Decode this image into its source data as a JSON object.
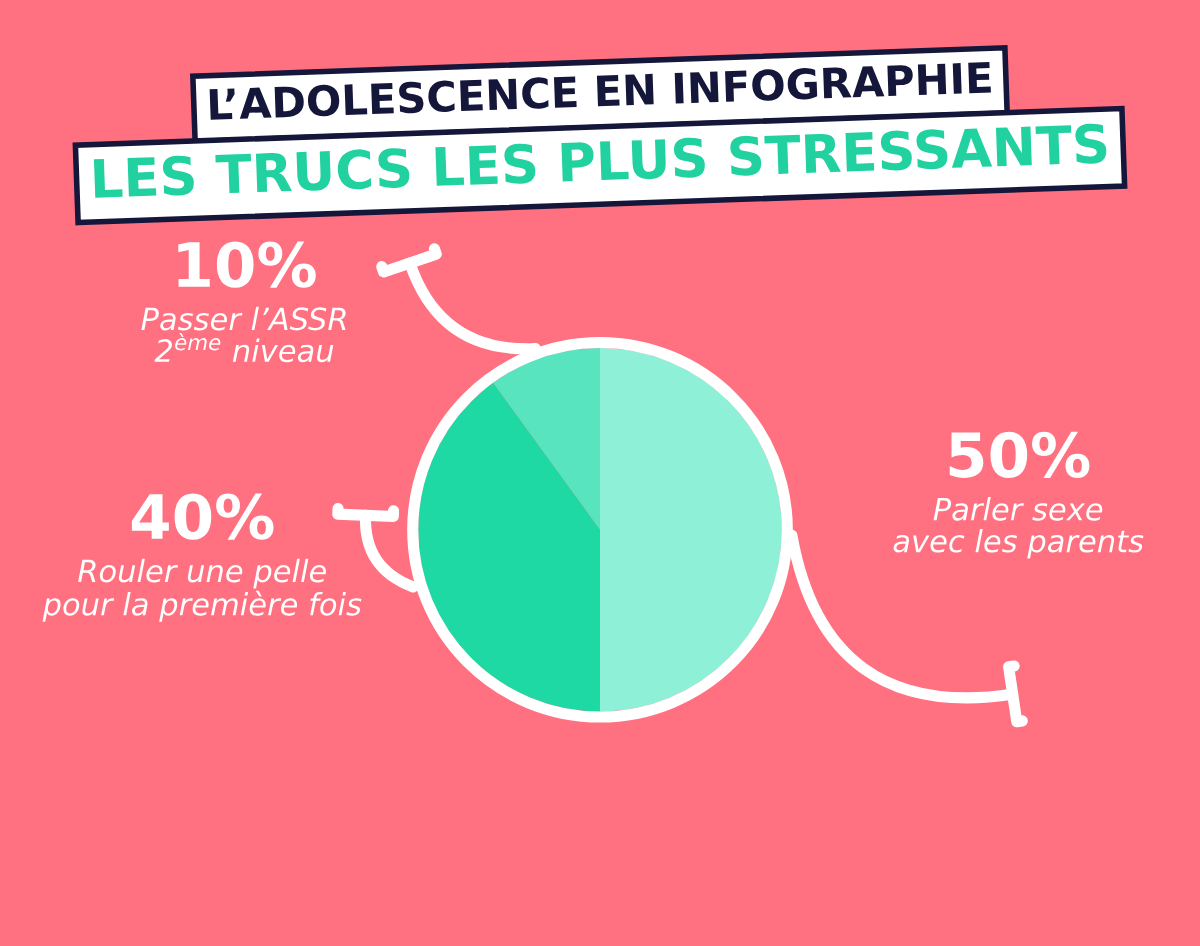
{
  "chart_data": {
    "type": "pie",
    "title": "L’ADOLESCENCE EN INFOGRAPHIE",
    "subtitle": "LES TRUCS LES PLUS STRESSANTS",
    "categories": [
      "Parler sexe\navec les parents",
      "Rouler une pelle\npour la première fois",
      "Passer l’ASSR\n2$^{ème}$ niveau"
    ],
    "values": [
      50,
      40,
      10
    ],
    "value_labels": [
      "50%",
      "40%",
      "10%"
    ],
    "colors": [
      "#8ef0d6",
      "#1fd9a4",
      "#58e4bf"
    ],
    "legend": false
  }
}
